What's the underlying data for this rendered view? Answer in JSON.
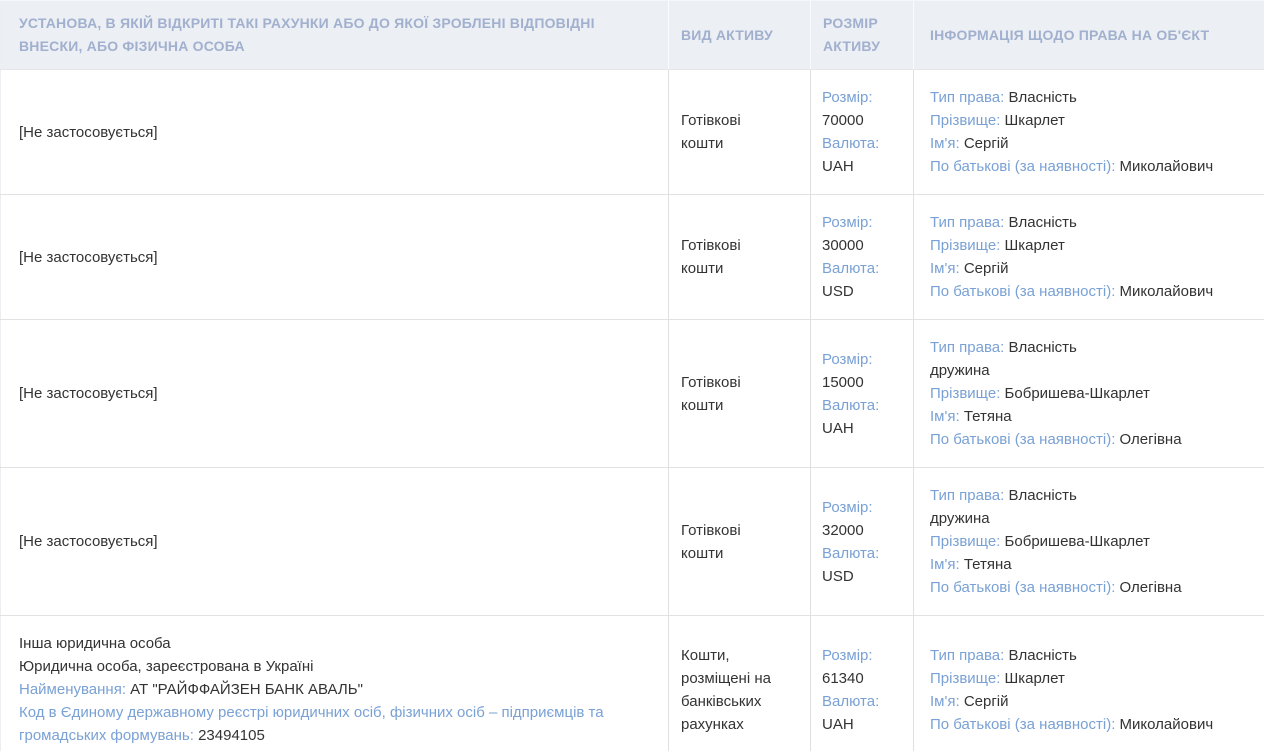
{
  "colors": {
    "header_bg": "#eceff4",
    "header_text": "#a1b0ce",
    "label_text": "#79a1d5",
    "value_text": "#333333",
    "row_border": "#e2e2e2"
  },
  "table": {
    "headers": [
      "УСТАНОВА, В ЯКІЙ ВІДКРИТІ ТАКІ РАХУНКИ АБО ДО ЯКОЇ ЗРОБЛЕНІ ВІДПОВІДНІ ВНЕСКИ, АБО ФІЗИЧНА ОСОБА",
      "ВИД АКТИВУ",
      "РОЗМІР АКТИВУ",
      "ІНФОРМАЦІЯ ЩОДО ПРАВА НА ОБ'ЄКТ"
    ],
    "rows": [
      {
        "institution": [
          {
            "value": "[Не застосовується]"
          }
        ],
        "asset_type": "Готівкові кошти",
        "asset_size": [
          {
            "label": "Розмір:"
          },
          {
            "value": "70000"
          },
          {
            "label": "Валюта:"
          },
          {
            "value": "UAH"
          }
        ],
        "rights": [
          {
            "label": "Тип права:",
            "value": "Власність"
          },
          {
            "label": "Прізвище:",
            "value": "Шкарлет"
          },
          {
            "label": "Ім'я:",
            "value": "Сергій"
          },
          {
            "label": "По батькові (за наявності):",
            "value": "Миколайович"
          }
        ]
      },
      {
        "institution": [
          {
            "value": "[Не застосовується]"
          }
        ],
        "asset_type": "Готівкові кошти",
        "asset_size": [
          {
            "label": "Розмір:"
          },
          {
            "value": "30000"
          },
          {
            "label": "Валюта:"
          },
          {
            "value": "USD"
          }
        ],
        "rights": [
          {
            "label": "Тип права:",
            "value": "Власність"
          },
          {
            "label": "Прізвище:",
            "value": "Шкарлет"
          },
          {
            "label": "Ім'я:",
            "value": "Сергій"
          },
          {
            "label": "По батькові (за наявності):",
            "value": "Миколайович"
          }
        ]
      },
      {
        "institution": [
          {
            "value": "[Не застосовується]"
          }
        ],
        "asset_type": "Готівкові кошти",
        "asset_size": [
          {
            "label": "Розмір:"
          },
          {
            "value": "15000"
          },
          {
            "label": "Валюта:"
          },
          {
            "value": "UAH"
          }
        ],
        "rights": [
          {
            "label": "Тип права:",
            "value": "Власність"
          },
          {
            "value": "дружина"
          },
          {
            "label": "Прізвище:",
            "value": "Бобришева-Шкарлет"
          },
          {
            "label": "Ім'я:",
            "value": "Тетяна"
          },
          {
            "label": "По батькові (за наявності):",
            "value": "Олегівна"
          }
        ]
      },
      {
        "institution": [
          {
            "value": "[Не застосовується]"
          }
        ],
        "asset_type": "Готівкові кошти",
        "asset_size": [
          {
            "label": "Розмір:"
          },
          {
            "value": "32000"
          },
          {
            "label": "Валюта:"
          },
          {
            "value": "USD"
          }
        ],
        "rights": [
          {
            "label": "Тип права:",
            "value": "Власність"
          },
          {
            "value": "дружина"
          },
          {
            "label": "Прізвище:",
            "value": "Бобришева-Шкарлет"
          },
          {
            "label": "Ім'я:",
            "value": "Тетяна"
          },
          {
            "label": "По батькові (за наявності):",
            "value": "Олегівна"
          }
        ]
      },
      {
        "institution": [
          {
            "value": "Інша юридична особа"
          },
          {
            "value": "Юридична особа, зареєстрована в Україні"
          },
          {
            "label": "Найменування:",
            "value": "АТ \"РАЙФФАЙЗЕН БАНК АВАЛЬ\""
          },
          {
            "label": "Код в Єдиному державному реєстрі юридичних осіб, фізичних осіб – підприємців та громадських формувань:",
            "value": "23494105"
          }
        ],
        "asset_type": "Кошти, розміщені на банківських рахунках",
        "asset_size": [
          {
            "label": "Розмір:"
          },
          {
            "value": "61340"
          },
          {
            "label": "Валюта:"
          },
          {
            "value": "UAH"
          }
        ],
        "rights": [
          {
            "label": "Тип права:",
            "value": "Власність"
          },
          {
            "label": "Прізвище:",
            "value": "Шкарлет"
          },
          {
            "label": "Ім'я:",
            "value": "Сергій"
          },
          {
            "label": "По батькові (за наявності):",
            "value": "Миколайович"
          }
        ]
      }
    ]
  }
}
